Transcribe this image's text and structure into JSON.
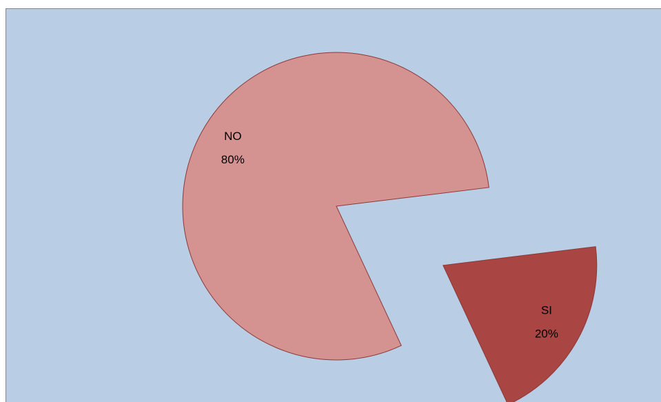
{
  "chart_data": {
    "type": "pie",
    "categories": [
      "NO",
      "SI"
    ],
    "values": [
      80,
      20
    ],
    "value_labels": [
      "80%",
      "20%"
    ],
    "colors": [
      "#d49391",
      "#a94543"
    ]
  }
}
